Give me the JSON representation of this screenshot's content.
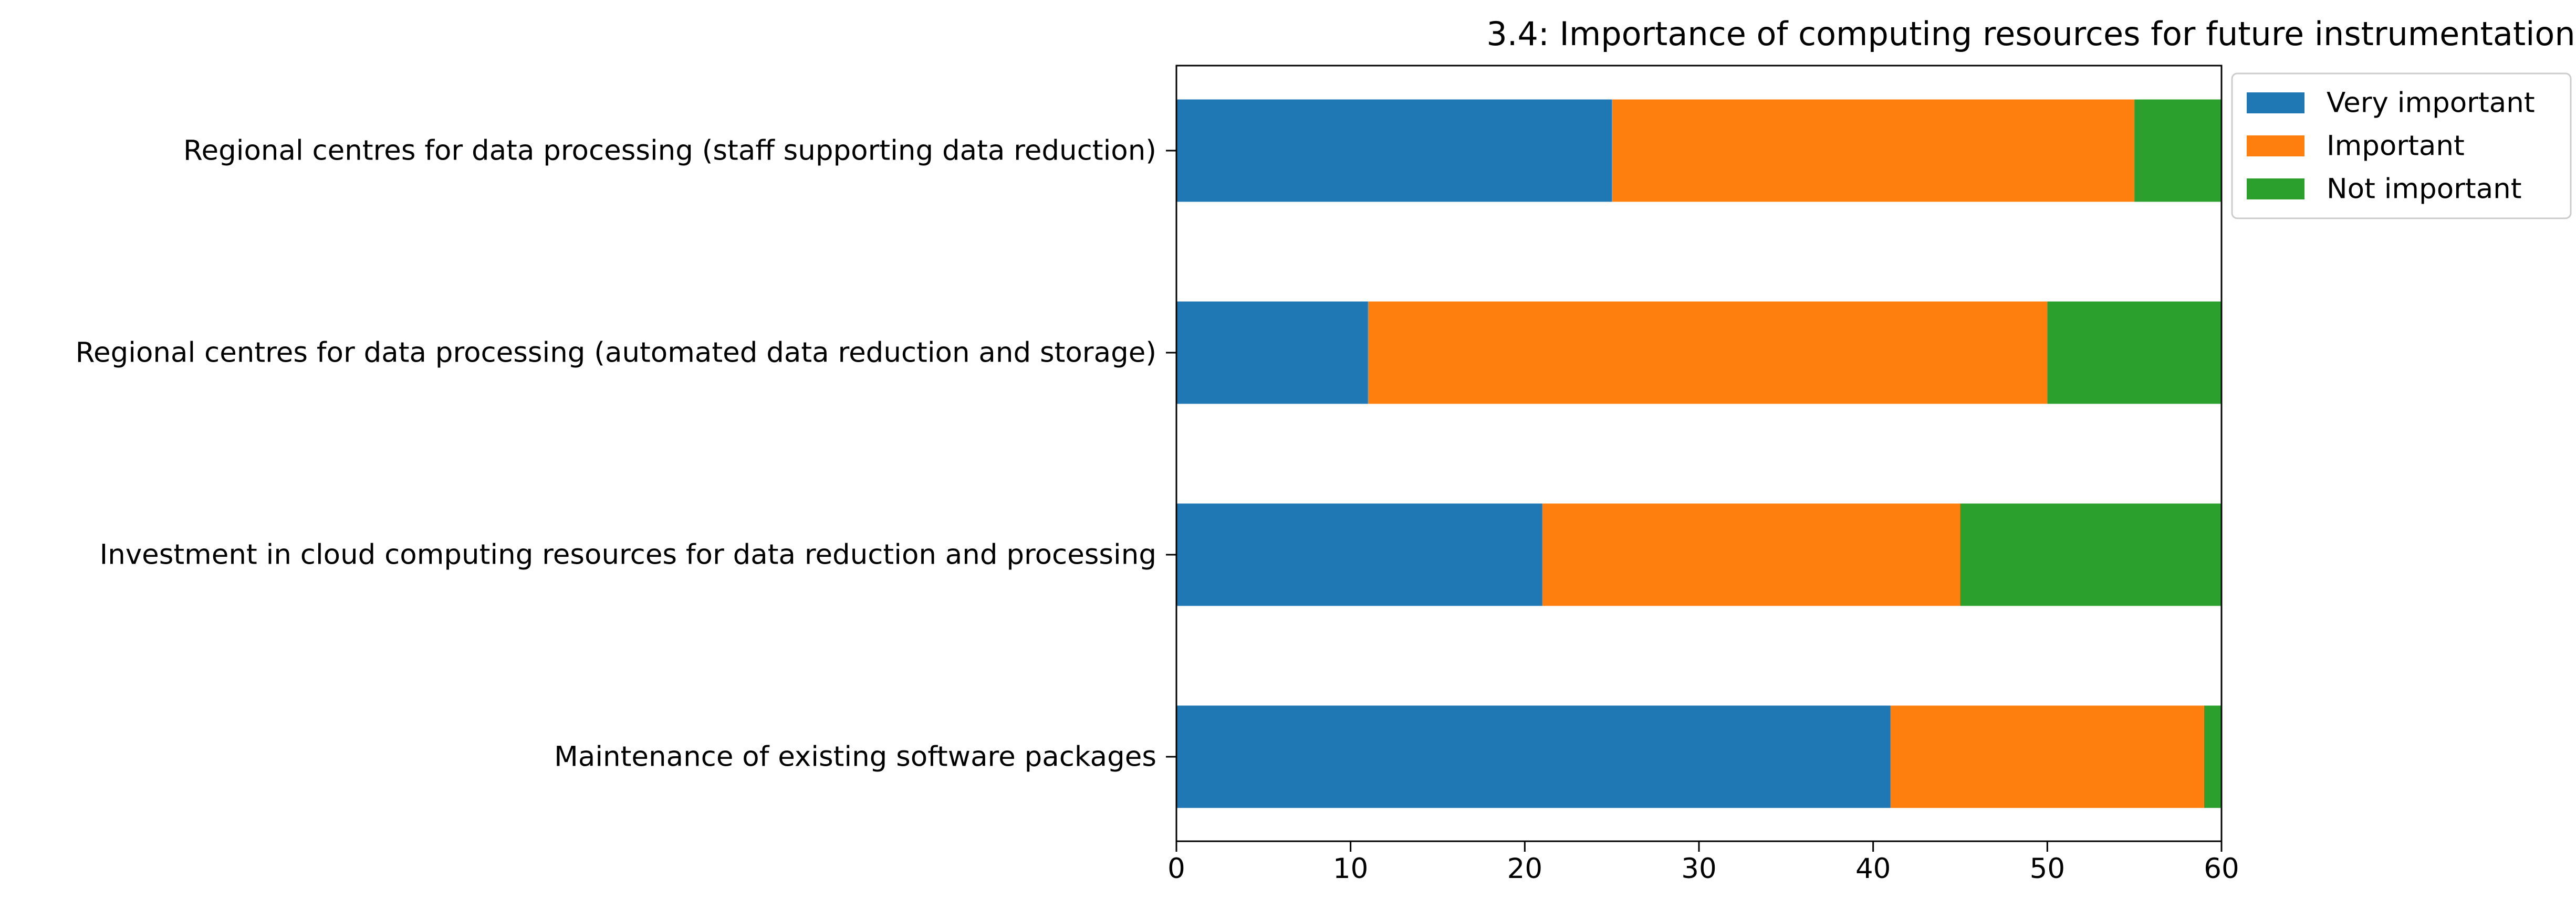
{
  "chart_data": {
    "type": "bar",
    "orientation": "horizontal",
    "stacked": true,
    "title": "3.4: Importance of computing resources for future instrumentation",
    "xlabel": "",
    "ylabel": "",
    "xlim": [
      0,
      60
    ],
    "xticks": [
      "0",
      "10",
      "20",
      "30",
      "40",
      "50",
      "60"
    ],
    "grid": false,
    "legend_position": "upper-right, outside plot",
    "categories": [
      "Regional centres for data processing (staff supporting data reduction)",
      "Regional centres for data processing (automated data reduction and storage)",
      "Investment in cloud computing resources for data reduction and processing",
      "Maintenance of existing software packages"
    ],
    "series": [
      {
        "name": "Very important",
        "color": "#1f77b4",
        "values": [
          25,
          11,
          21,
          41
        ]
      },
      {
        "name": "Important",
        "color": "#ff7f0e",
        "values": [
          30,
          39,
          24,
          18
        ]
      },
      {
        "name": "Not important",
        "color": "#2ca02c",
        "values": [
          5,
          10,
          15,
          1
        ]
      }
    ]
  }
}
